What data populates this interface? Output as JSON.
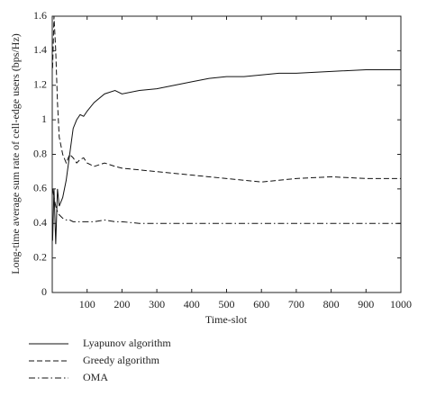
{
  "chart_data": {
    "type": "line",
    "xlabel": "Time-slot",
    "ylabel": "Long-time average sum rate of cell-edge users (bps/Hz)",
    "x": [
      1,
      5,
      10,
      15,
      20,
      30,
      40,
      50,
      60,
      70,
      80,
      90,
      100,
      120,
      150,
      180,
      200,
      250,
      300,
      350,
      400,
      450,
      500,
      550,
      600,
      650,
      700,
      800,
      900,
      1000
    ],
    "series": [
      {
        "name": "Lyapunov algorithm",
        "color": "#111111",
        "dash": "solid",
        "values": [
          0.3,
          0.6,
          0.28,
          0.6,
          0.5,
          0.55,
          0.65,
          0.8,
          0.95,
          1.0,
          1.03,
          1.02,
          1.05,
          1.1,
          1.15,
          1.17,
          1.15,
          1.17,
          1.18,
          1.2,
          1.22,
          1.24,
          1.25,
          1.25,
          1.26,
          1.27,
          1.27,
          1.28,
          1.29,
          1.29
        ]
      },
      {
        "name": "Greedy algorithm",
        "color": "#111111",
        "dash": "dashed",
        "values": [
          1.3,
          1.6,
          1.4,
          1.1,
          0.9,
          0.8,
          0.75,
          0.8,
          0.78,
          0.75,
          0.77,
          0.78,
          0.75,
          0.73,
          0.75,
          0.73,
          0.72,
          0.71,
          0.7,
          0.69,
          0.68,
          0.67,
          0.66,
          0.65,
          0.64,
          0.65,
          0.66,
          0.67,
          0.66,
          0.66
        ]
      },
      {
        "name": "OMA",
        "color": "#111111",
        "dash": "dashdot",
        "values": [
          0.6,
          0.55,
          0.5,
          0.47,
          0.45,
          0.43,
          0.42,
          0.42,
          0.41,
          0.41,
          0.41,
          0.41,
          0.41,
          0.41,
          0.42,
          0.41,
          0.41,
          0.4,
          0.4,
          0.4,
          0.4,
          0.4,
          0.4,
          0.4,
          0.4,
          0.4,
          0.4,
          0.4,
          0.4,
          0.4
        ]
      }
    ],
    "xlim": [
      0,
      1000
    ],
    "xticks": [
      100,
      200,
      300,
      400,
      500,
      600,
      700,
      800,
      900,
      1000
    ],
    "ylim": [
      0,
      1.6
    ],
    "yticks": [
      0,
      0.2,
      0.4,
      0.6,
      0.8,
      1,
      1.2,
      1.4,
      1.6
    ],
    "legend": "bottom-left"
  }
}
